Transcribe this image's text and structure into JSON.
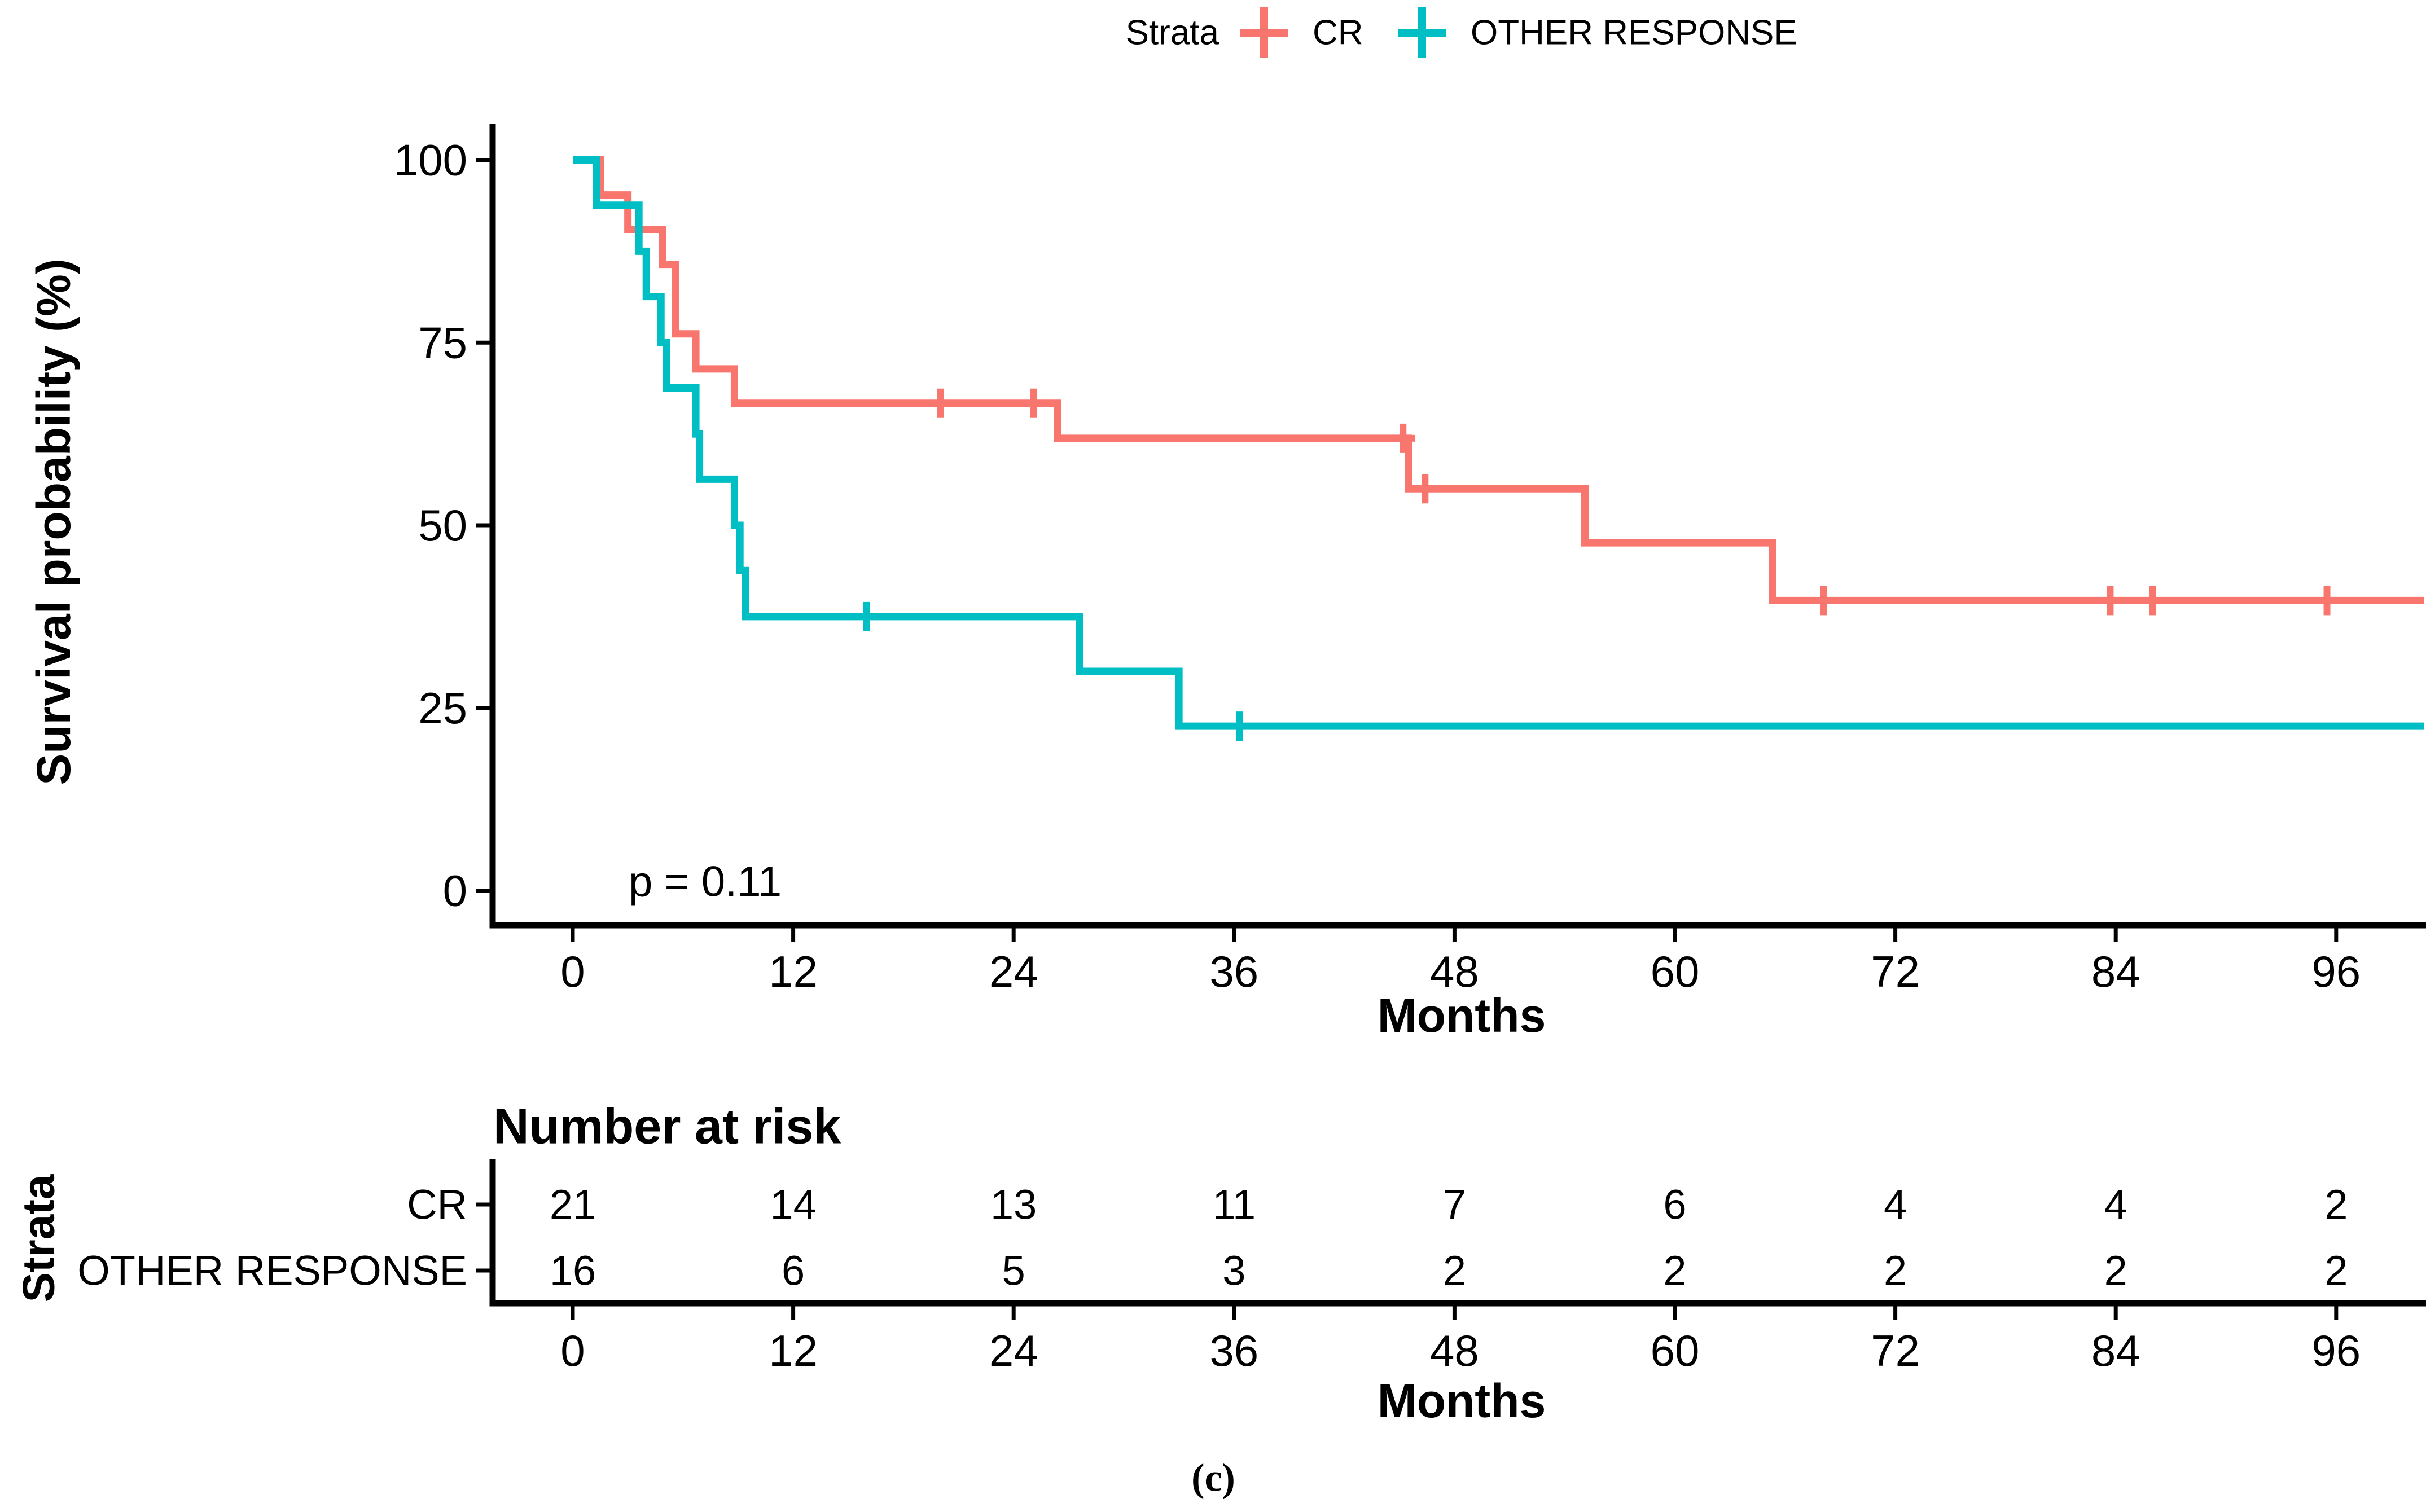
{
  "legend": {
    "title": "Strata",
    "entries": [
      {
        "label": "CR",
        "color": "#F8766D"
      },
      {
        "label": "OTHER RESPONSE",
        "color": "#00BFC4"
      }
    ]
  },
  "y_axis": {
    "label": "Survival probability (%)",
    "ticks": [
      100,
      75,
      50,
      25,
      0
    ]
  },
  "x_axis": {
    "label": "Months",
    "ticks": [
      0,
      12,
      24,
      36,
      48,
      60,
      72,
      84,
      96
    ]
  },
  "annotations": {
    "p_value": "p = 0.11"
  },
  "risk_table": {
    "title": "Number at risk",
    "y_label": "Strata",
    "x_label": "Months",
    "rows": [
      {
        "label": "CR",
        "color": "#F8766D",
        "counts": [
          21,
          14,
          13,
          11,
          7,
          6,
          4,
          4,
          2
        ]
      },
      {
        "label": "OTHER RESPONSE",
        "color": "#00BFC4",
        "counts": [
          16,
          6,
          5,
          3,
          2,
          2,
          2,
          2,
          2
        ]
      }
    ]
  },
  "caption": "(c)",
  "chart_data": {
    "type": "line",
    "subtype": "kaplan-meier-step",
    "title": "",
    "xlabel": "Months",
    "ylabel": "Survival probability (%)",
    "xlim": [
      0,
      101
    ],
    "ylim": [
      0,
      100
    ],
    "grid": false,
    "legend_position": "top",
    "series": [
      {
        "name": "CR",
        "color": "#F8766D",
        "n_start": 21,
        "start": [
          0,
          100
        ],
        "drops": [
          [
            1.5,
            95.2
          ],
          [
            3.0,
            90.5
          ],
          [
            4.9,
            85.7
          ],
          [
            5.6,
            76.2
          ],
          [
            6.7,
            71.4
          ],
          [
            8.8,
            66.7
          ],
          [
            26.4,
            61.9
          ],
          [
            45.5,
            55.0
          ],
          [
            55.1,
            47.6
          ],
          [
            65.3,
            39.7
          ]
        ],
        "end_x": 100.8,
        "censors": [
          [
            20,
            66.7
          ],
          [
            25.1,
            66.7
          ],
          [
            45.2,
            61.9
          ],
          [
            46.4,
            55.0
          ],
          [
            68.1,
            39.7
          ],
          [
            83.7,
            39.7
          ],
          [
            86.0,
            39.7
          ],
          [
            95.5,
            39.7
          ]
        ]
      },
      {
        "name": "OTHER RESPONSE",
        "color": "#00BFC4",
        "n_start": 16,
        "start": [
          0,
          100
        ],
        "drops": [
          [
            1.3,
            93.8
          ],
          [
            3.6,
            87.5
          ],
          [
            4.0,
            81.3
          ],
          [
            4.8,
            75.0
          ],
          [
            5.1,
            68.8
          ],
          [
            6.7,
            62.5
          ],
          [
            6.9,
            56.3
          ],
          [
            8.8,
            50.0
          ],
          [
            9.1,
            43.8
          ],
          [
            9.4,
            37.5
          ],
          [
            27.6,
            30.0
          ],
          [
            33.0,
            22.5
          ]
        ],
        "end_x": 100.8,
        "censors": [
          [
            16,
            37.5
          ],
          [
            36.3,
            22.5
          ]
        ]
      }
    ]
  }
}
